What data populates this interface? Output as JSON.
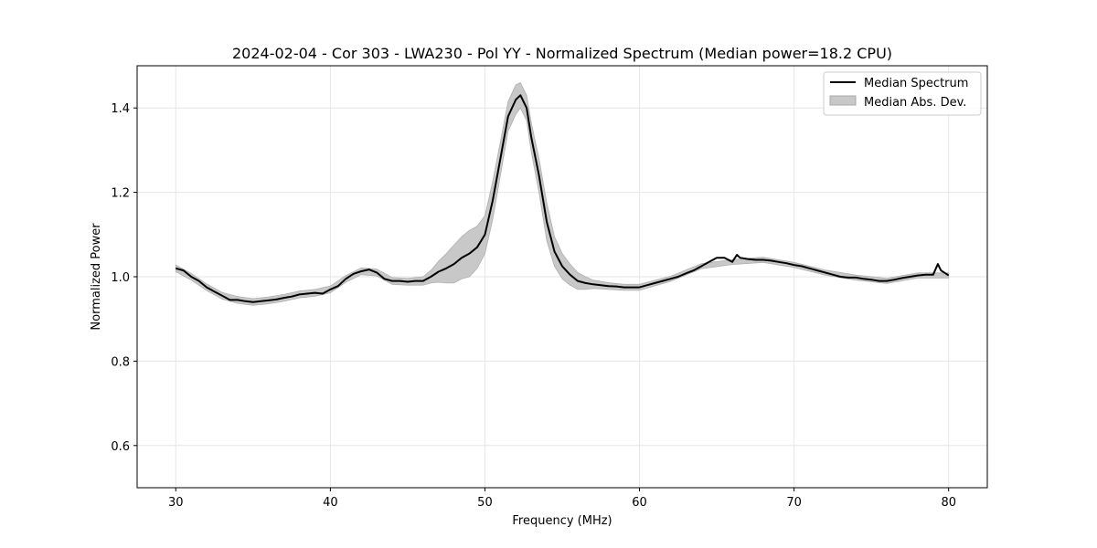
{
  "chart_data": {
    "type": "line",
    "title": "2024-02-04 - Cor 303 - LWA230 - Pol YY - Normalized Spectrum (Median power=18.2 CPU)",
    "xlabel": "Frequency (MHz)",
    "ylabel": "Normalized Power",
    "xlim": [
      27.5,
      82.5
    ],
    "ylim": [
      0.5,
      1.5
    ],
    "xticks": [
      30,
      40,
      50,
      60,
      70,
      80
    ],
    "yticks": [
      0.6,
      0.8,
      1.0,
      1.2,
      1.4
    ],
    "xtick_labels": [
      "30",
      "40",
      "50",
      "60",
      "70",
      "80"
    ],
    "ytick_labels": [
      "0.6",
      "0.8",
      "1.0",
      "1.2",
      "1.4"
    ],
    "grid": true,
    "legend_position": "top-right",
    "series": [
      {
        "name": "Median Spectrum",
        "color": "#000000",
        "x": [
          30,
          30.5,
          31,
          31.5,
          32,
          32.5,
          33,
          33.5,
          34,
          34.5,
          35,
          35.5,
          36,
          36.5,
          37,
          37.5,
          38,
          38.5,
          39,
          39.5,
          40,
          40.5,
          41,
          41.5,
          42,
          42.5,
          43,
          43.5,
          44,
          44.5,
          45,
          45.5,
          46,
          46.5,
          47,
          47.5,
          48,
          48.5,
          49,
          49.5,
          50,
          50.5,
          51,
          51.5,
          52,
          52.3,
          52.7,
          53,
          53.5,
          54,
          54.5,
          55,
          55.5,
          56,
          56.5,
          57,
          57.5,
          58,
          58.5,
          59,
          59.5,
          60,
          60.5,
          61,
          61.5,
          62,
          62.5,
          63,
          63.5,
          64,
          64.5,
          65,
          65.5,
          66,
          66.3,
          66.5,
          67,
          67.5,
          68,
          68.5,
          69,
          69.5,
          70,
          70.5,
          71,
          71.5,
          72,
          72.5,
          73,
          73.5,
          74,
          74.5,
          75,
          75.5,
          76,
          76.5,
          77,
          77.5,
          78,
          78.5,
          79,
          79.3,
          79.5,
          80
        ],
        "y": [
          1.02,
          1.015,
          1.0,
          0.99,
          0.975,
          0.965,
          0.955,
          0.945,
          0.945,
          0.942,
          0.94,
          0.942,
          0.944,
          0.946,
          0.95,
          0.953,
          0.958,
          0.96,
          0.962,
          0.96,
          0.97,
          0.978,
          0.995,
          1.007,
          1.013,
          1.017,
          1.01,
          0.995,
          0.99,
          0.99,
          0.988,
          0.99,
          0.99,
          1.0,
          1.012,
          1.02,
          1.03,
          1.045,
          1.055,
          1.07,
          1.1,
          1.18,
          1.28,
          1.38,
          1.42,
          1.43,
          1.4,
          1.33,
          1.24,
          1.13,
          1.06,
          1.025,
          1.005,
          0.99,
          0.985,
          0.982,
          0.98,
          0.978,
          0.977,
          0.975,
          0.975,
          0.975,
          0.98,
          0.985,
          0.99,
          0.995,
          1.0,
          1.008,
          1.015,
          1.025,
          1.035,
          1.045,
          1.045,
          1.035,
          1.052,
          1.045,
          1.042,
          1.04,
          1.04,
          1.038,
          1.035,
          1.032,
          1.028,
          1.025,
          1.02,
          1.015,
          1.01,
          1.005,
          1.0,
          0.998,
          0.998,
          0.995,
          0.993,
          0.99,
          0.99,
          0.993,
          0.997,
          1.0,
          1.003,
          1.005,
          1.005,
          1.03,
          1.015,
          1.003
        ]
      }
    ],
    "band": {
      "name": "Median Abs. Dev.",
      "color": "#c8c8c8",
      "x": [
        30,
        31,
        32,
        33,
        34,
        35,
        36,
        37,
        38,
        39,
        40,
        41,
        42,
        43,
        44,
        45,
        46,
        46.5,
        47,
        47.5,
        48,
        48.5,
        49,
        49.5,
        50,
        50.5,
        51,
        51.5,
        52,
        52.3,
        52.7,
        53,
        53.5,
        54,
        54.5,
        55,
        55.5,
        56,
        56.5,
        57,
        58,
        59,
        60,
        62,
        64,
        66,
        68,
        70,
        72,
        74,
        76,
        78,
        80
      ],
      "half_width": [
        0.008,
        0.008,
        0.008,
        0.008,
        0.008,
        0.008,
        0.008,
        0.008,
        0.008,
        0.008,
        0.008,
        0.008,
        0.008,
        0.008,
        0.008,
        0.008,
        0.01,
        0.015,
        0.025,
        0.035,
        0.045,
        0.05,
        0.055,
        0.05,
        0.045,
        0.045,
        0.04,
        0.035,
        0.035,
        0.03,
        0.03,
        0.035,
        0.04,
        0.045,
        0.035,
        0.03,
        0.025,
        0.02,
        0.015,
        0.01,
        0.008,
        0.007,
        0.007,
        0.006,
        0.006,
        0.006,
        0.006,
        0.006,
        0.006,
        0.006,
        0.006,
        0.006,
        0.006
      ]
    }
  }
}
